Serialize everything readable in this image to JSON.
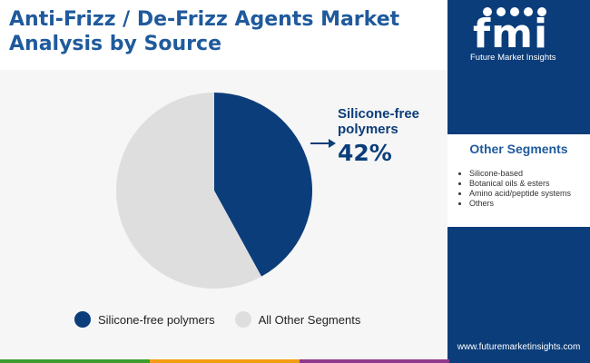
{
  "header": {
    "title": "Anti-Frizz / De-Frizz Agents Market Analysis by Source"
  },
  "chart_data": {
    "type": "pie",
    "title": "Anti-Frizz / De-Frizz Agents Market Analysis by Source",
    "slices": [
      {
        "name": "Silicone-free polymers",
        "value": 42,
        "color": "#0b3d7a"
      },
      {
        "name": "All Other Segments",
        "value": 58,
        "color": "#dedede"
      }
    ],
    "callout": {
      "label": "Silicone-free polymers",
      "value_text": "42%"
    },
    "legend": [
      {
        "label": "Silicone-free polymers",
        "color": "#0b3d7a"
      },
      {
        "label": "All Other Segments",
        "color": "#dedede"
      }
    ],
    "legend_position": "bottom"
  },
  "sidebar": {
    "logo_text": "fmi",
    "logo_caption": "Future Market Insights",
    "segments_title": "Other Segments",
    "segments": [
      "Silicone-based",
      "Botanical oils & esters",
      "Amino acid/peptide systems",
      "Others"
    ],
    "website": "www.futuremarketinsights.com"
  },
  "colors": {
    "brand_dark": "#0b3d7a",
    "title_blue": "#1f5a9c",
    "bar_segments": [
      "#3a9d2f",
      "#f39c12",
      "#8e3a8c",
      "#0b3d7a"
    ]
  }
}
